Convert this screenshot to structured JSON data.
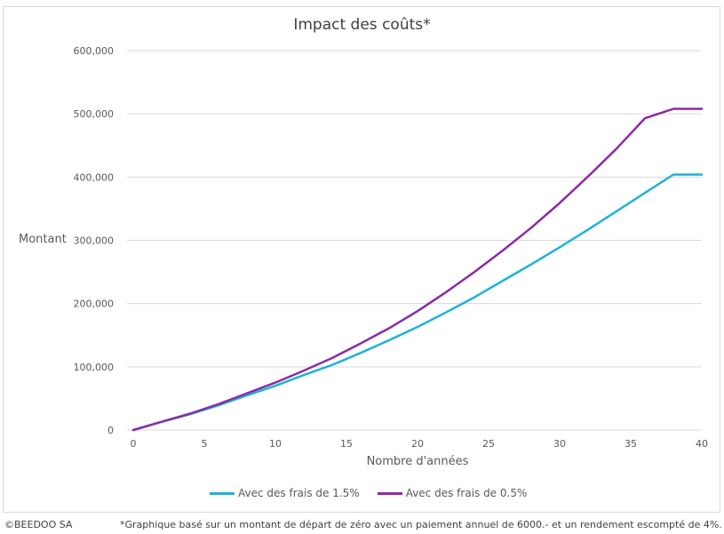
{
  "chart_data": {
    "type": "line",
    "title": "Impact des coûts*",
    "xlabel": "Nombre d'années",
    "ylabel": "Montant",
    "xlim": [
      0,
      40
    ],
    "ylim": [
      0,
      600000
    ],
    "x_ticks": [
      "0",
      "5",
      "10",
      "15",
      "20",
      "25",
      "30",
      "35",
      "40"
    ],
    "y_ticks": [
      "0",
      "100,000",
      "200,000",
      "300,000",
      "400,000",
      "500,000",
      "600,000"
    ],
    "grid": "horizontal",
    "legend_position": "bottom",
    "series": [
      {
        "name": "Avec des frais de 1.5%",
        "color": "#1fb3d6",
        "x": [
          0,
          2,
          4,
          6,
          8,
          10,
          12,
          14,
          16,
          18,
          20,
          22,
          24,
          26,
          28,
          30,
          32,
          34,
          36,
          38,
          40
        ],
        "values": [
          0,
          13000,
          25000,
          39000,
          55000,
          70000,
          87000,
          103000,
          122000,
          142000,
          163000,
          186000,
          210000,
          236000,
          262000,
          289000,
          317000,
          346000,
          375000,
          404000,
          404000
        ]
      },
      {
        "name": "Avec des frais de 0.5%",
        "color": "#8a2ba6",
        "x": [
          0,
          2,
          4,
          6,
          8,
          10,
          12,
          14,
          16,
          18,
          20,
          22,
          24,
          26,
          28,
          30,
          32,
          34,
          36,
          38,
          40
        ],
        "values": [
          0,
          13000,
          26000,
          41000,
          58000,
          75000,
          94000,
          114000,
          137000,
          161000,
          188000,
          218000,
          250000,
          284000,
          320000,
          359000,
          401000,
          445000,
          493000,
          508000,
          508000
        ]
      }
    ]
  },
  "footer": {
    "copyright": "©BEEDOO SA",
    "note": "*Graphique basé sur un montant de départ de zéro avec un paiement annuel de 6000.- et un rendement escompté de 4%."
  }
}
